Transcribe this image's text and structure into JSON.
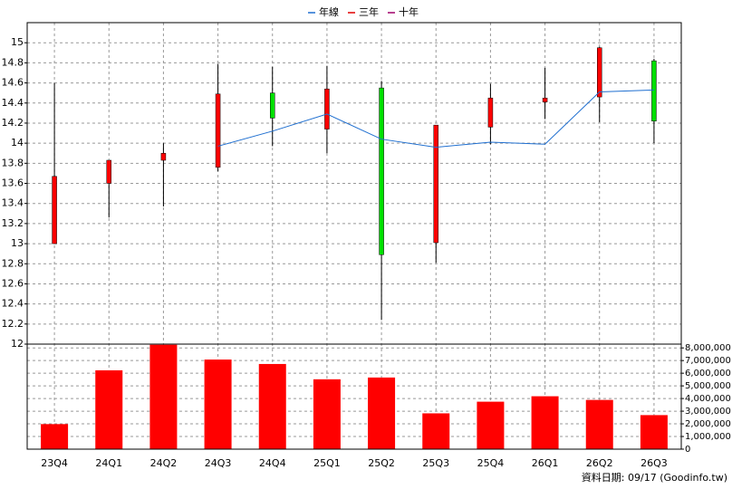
{
  "chart_data": {
    "type": "candlestick",
    "categories": [
      "23Q4",
      "24Q1",
      "24Q2",
      "24Q3",
      "24Q4",
      "25Q1",
      "25Q2",
      "25Q3",
      "25Q4",
      "26Q1",
      "26Q2",
      "26Q3"
    ],
    "open": [
      13.0,
      13.6,
      13.83,
      13.76,
      14.5,
      14.14,
      14.55,
      13.01,
      14.16,
      14.41,
      14.46,
      14.82
    ],
    "high": [
      14.6,
      13.83,
      14.0,
      14.79,
      14.76,
      14.77,
      14.62,
      14.18,
      14.59,
      14.75,
      14.96,
      14.84
    ],
    "low": [
      13.0,
      13.26,
      13.37,
      13.72,
      13.97,
      13.9,
      12.24,
      12.81,
      13.99,
      14.24,
      14.21,
      14.0
    ],
    "close": [
      13.67,
      13.83,
      13.9,
      14.49,
      14.25,
      14.54,
      12.89,
      14.18,
      14.45,
      14.45,
      14.95,
      14.22
    ],
    "up_color": "#ff0000",
    "down_color": "#00e000",
    "wick_color": "#000000",
    "series": [
      {
        "name": "年線",
        "color": "#1f6fd0",
        "values": [
          null,
          null,
          null,
          13.97,
          14.12,
          14.29,
          14.04,
          13.96,
          14.01,
          13.99,
          14.51,
          14.53
        ]
      },
      {
        "name": "三年",
        "color": "#e00000"
      },
      {
        "name": "十年",
        "color": "#a0006a"
      }
    ],
    "ylim": [
      12,
      15.2
    ],
    "yticks": [
      12,
      12.2,
      12.4,
      12.6,
      12.8,
      13,
      13.2,
      13.4,
      13.6,
      13.8,
      14,
      14.2,
      14.4,
      14.6,
      14.8,
      15
    ],
    "volume": {
      "color": "#ff0000",
      "values": [
        1980000,
        6230000,
        8250000,
        7080000,
        6730000,
        5520000,
        5660000,
        2830000,
        3750000,
        4180000,
        3890000,
        2690000
      ],
      "ylim": [
        0,
        8300000
      ],
      "yticks": [
        {
          "value": 0,
          "label": "0"
        },
        {
          "value": 1000000,
          "label": "1,000,000"
        },
        {
          "value": 2000000,
          "label": "2,000,000"
        },
        {
          "value": 3000000,
          "label": "3,000,000"
        },
        {
          "value": 4000000,
          "label": "4,000,000"
        },
        {
          "value": 5000000,
          "label": "5,000,000"
        },
        {
          "value": 6000000,
          "label": "6,000,000"
        },
        {
          "value": 7000000,
          "label": "7,000,000"
        },
        {
          "value": 8000000,
          "label": "8,000,000"
        }
      ]
    },
    "grid": true,
    "footer": "資料日期: 09/17  (Goodinfo.tw)"
  }
}
